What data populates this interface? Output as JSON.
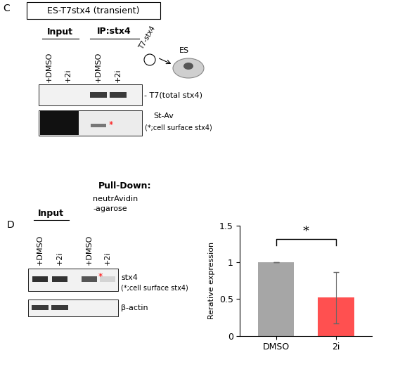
{
  "panel_c": {
    "letter": "C",
    "construct": "ES-T7stx4 (transient)",
    "groups": [
      "Input",
      "IP:stx4"
    ],
    "lanes": [
      "+DMSO",
      "+2i",
      "+DMSO",
      "+2i"
    ],
    "plasmid": "T7-stx4",
    "cell": "ES",
    "blots": [
      {
        "label": "- T7(total stx4)"
      },
      {
        "label": "St-Av",
        "note": "(*;cell surface stx4)"
      }
    ],
    "band_marker": "*"
  },
  "panel_d": {
    "letter": "D",
    "title": "Pull-Down:",
    "reagent": [
      "neutrAvidin",
      "-agarose"
    ],
    "input_label": "Input",
    "lanes": [
      "+DMSO",
      "+2i",
      "+DMSO",
      "+2i"
    ],
    "blots": [
      {
        "label": "stx4",
        "note": "(*;cell surface stx4)"
      },
      {
        "label": "β-actin"
      }
    ],
    "band_marker": "*"
  },
  "chart_data": {
    "type": "bar",
    "categories": [
      "DMSO",
      "2i"
    ],
    "values": [
      1,
      0.52
    ],
    "errors": [
      0,
      0.35
    ],
    "colors": [
      "#a6a6a6",
      "#ff5050"
    ],
    "y_label": "Rerative expression",
    "ylim": [
      0,
      1.5
    ],
    "yticks": [
      0,
      0.5,
      1,
      1.5
    ],
    "significance": "*"
  }
}
